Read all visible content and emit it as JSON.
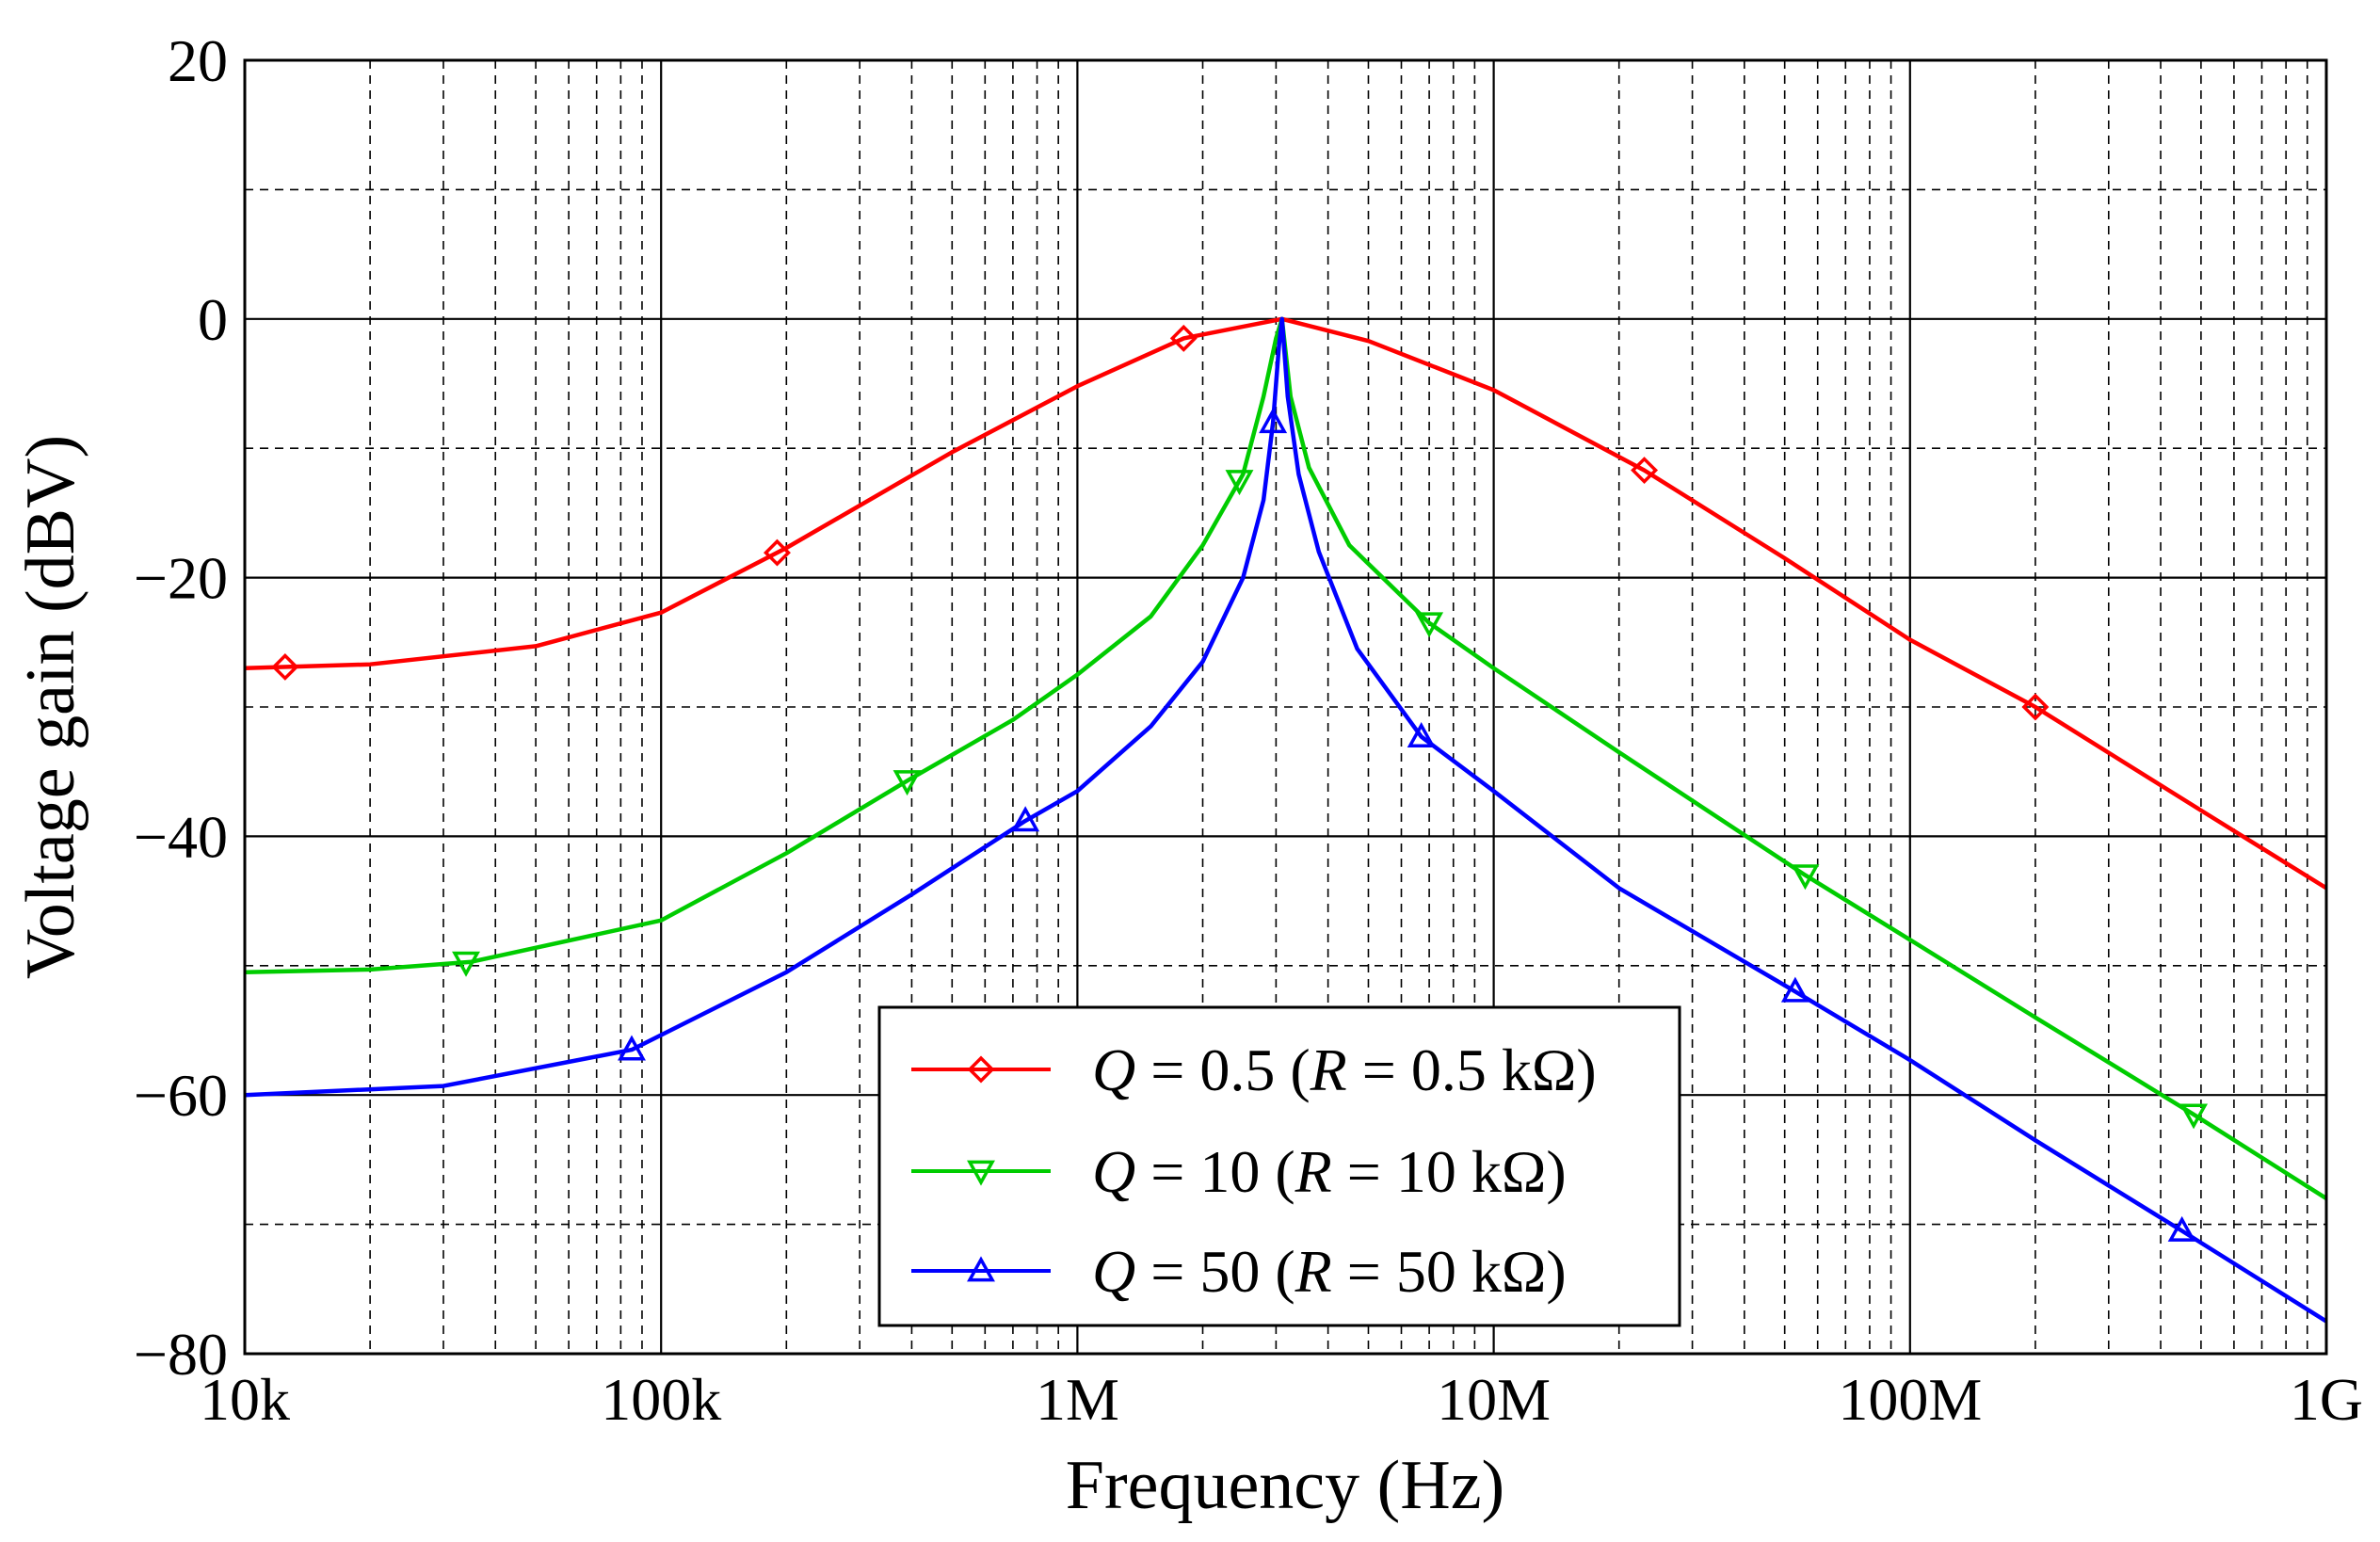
{
  "chart_data": {
    "type": "line",
    "title": "",
    "xlabel": "Frequency (Hz)",
    "ylabel": "Voltage gain (dBV)",
    "xscale": "log",
    "xlim": [
      10000,
      1000000000
    ],
    "ylim": [
      -80,
      20
    ],
    "x_ticks": [
      {
        "value": 10000,
        "label": "10k"
      },
      {
        "value": 100000,
        "label": "100k"
      },
      {
        "value": 1000000,
        "label": "1M"
      },
      {
        "value": 10000000,
        "label": "10M"
      },
      {
        "value": 100000000,
        "label": "100M"
      },
      {
        "value": 1000000000,
        "label": "1G"
      }
    ],
    "y_ticks": [
      {
        "value": 20,
        "label": "20"
      },
      {
        "value": 0,
        "label": "0"
      },
      {
        "value": -20,
        "label": "−20"
      },
      {
        "value": -40,
        "label": "−40"
      },
      {
        "value": -60,
        "label": "−60"
      },
      {
        "value": -80,
        "label": "−80"
      }
    ],
    "y_minor_ticks": [
      10,
      -10,
      -30,
      -50,
      -70
    ],
    "grid": true,
    "legend_position": "bottom-center",
    "series": [
      {
        "name": "Q = 0.5 (R = 0.5 kΩ)",
        "legend_q": "Q",
        "legend_eq": " = 0.5  (",
        "legend_r": "R",
        "legend_tail": " = 0.5 kΩ)",
        "color": "#ff0000",
        "marker": "diamond",
        "points": [
          [
            10000,
            -27
          ],
          [
            20000,
            -26.7
          ],
          [
            50000,
            -25.3
          ],
          [
            100000,
            -22.7
          ],
          [
            200000,
            -17.7
          ],
          [
            500000,
            -10.3
          ],
          [
            1000000,
            -5.2
          ],
          [
            1800000,
            -1.5
          ],
          [
            3100000,
            0
          ],
          [
            5000000,
            -1.7
          ],
          [
            10000000,
            -5.5
          ],
          [
            23000000,
            -11.7
          ],
          [
            50000000,
            -18.5
          ],
          [
            100000000,
            -24.8
          ],
          [
            200000000,
            -30
          ],
          [
            500000000,
            -38
          ],
          [
            1000000000,
            -44
          ]
        ],
        "markers_x": [
          12500,
          190000,
          1800000,
          23000000,
          200000000
        ]
      },
      {
        "name": "Q = 10 (R = 10 kΩ)",
        "legend_q": "Q",
        "legend_eq": " = 10  (",
        "legend_r": "R",
        "legend_tail": " = 10 kΩ)",
        "color": "#00cc00",
        "marker": "triangle-down",
        "points": [
          [
            10000,
            -50.5
          ],
          [
            20000,
            -50.3
          ],
          [
            35000,
            -49.7
          ],
          [
            100000,
            -46.5
          ],
          [
            200000,
            -41.3
          ],
          [
            400000,
            -35.5
          ],
          [
            700000,
            -31
          ],
          [
            1000000,
            -27.5
          ],
          [
            1500000,
            -23
          ],
          [
            2000000,
            -17.5
          ],
          [
            2500000,
            -12
          ],
          [
            2800000,
            -6
          ],
          [
            3000000,
            -1.5
          ],
          [
            3100000,
            0
          ],
          [
            3250000,
            -6
          ],
          [
            3600000,
            -11.5
          ],
          [
            4500000,
            -17.5
          ],
          [
            7000000,
            -23.5
          ],
          [
            10000000,
            -27
          ],
          [
            20000000,
            -33.5
          ],
          [
            56000000,
            -43
          ],
          [
            100000000,
            -48
          ],
          [
            200000000,
            -54
          ],
          [
            480000000,
            -61.5
          ],
          [
            1000000000,
            -68
          ]
        ],
        "markers_x": [
          34000,
          390000,
          2450000,
          7000000,
          56000000,
          480000000
        ]
      },
      {
        "name": "Q = 50 (R = 50 kΩ)",
        "legend_q": "Q",
        "legend_eq": " = 50  (",
        "legend_r": "R",
        "legend_tail": " = 50 kΩ)",
        "color": "#0000ff",
        "marker": "triangle-up",
        "points": [
          [
            10000,
            -60
          ],
          [
            30000,
            -59.3
          ],
          [
            85000,
            -56.5
          ],
          [
            200000,
            -50.5
          ],
          [
            400000,
            -44.5
          ],
          [
            750000,
            -38.8
          ],
          [
            1000000,
            -36.5
          ],
          [
            1500000,
            -31.5
          ],
          [
            2000000,
            -26.5
          ],
          [
            2500000,
            -20
          ],
          [
            2800000,
            -14
          ],
          [
            2950000,
            -8
          ],
          [
            3050000,
            -2
          ],
          [
            3100000,
            0
          ],
          [
            3200000,
            -6
          ],
          [
            3400000,
            -12
          ],
          [
            3800000,
            -18
          ],
          [
            4700000,
            -25.5
          ],
          [
            6700000,
            -32.3
          ],
          [
            10000000,
            -36.5
          ],
          [
            20000000,
            -44
          ],
          [
            53000000,
            -52
          ],
          [
            100000000,
            -57.3
          ],
          [
            200000000,
            -63.5
          ],
          [
            450000000,
            -70.5
          ],
          [
            1000000000,
            -77.5
          ]
        ],
        "markers_x": [
          85000,
          750000,
          2950000,
          6700000,
          53000000,
          450000000
        ]
      }
    ]
  }
}
